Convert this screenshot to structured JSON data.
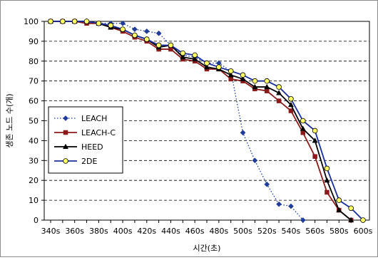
{
  "chart_data": {
    "type": "line",
    "title": "",
    "xlabel": "시간(초)",
    "ylabel": "생존 노드 수(개)",
    "categories": [
      "340s",
      "350s",
      "360s",
      "370s",
      "380s",
      "390s",
      "400s",
      "410s",
      "420s",
      "430s",
      "440s",
      "450s",
      "460s",
      "470s",
      "480s",
      "490s",
      "500s",
      "510s",
      "520s",
      "530s",
      "540s",
      "550s",
      "560s",
      "570s",
      "580s",
      "590s",
      "600s"
    ],
    "x_tick_labels": [
      "340s",
      "360s",
      "380s",
      "400s",
      "420s",
      "440s",
      "460s",
      "480s",
      "500s",
      "520s",
      "540s",
      "560s",
      "580s",
      "600s"
    ],
    "ylim": [
      0,
      100
    ],
    "y_ticks": [
      0,
      10,
      20,
      30,
      40,
      50,
      60,
      70,
      80,
      90,
      100
    ],
    "grid": "horizontal dashed",
    "legend_position": "lower-left inside",
    "series": [
      {
        "name": "LEACH",
        "color": "#1F3C9A",
        "line_style": "dotted",
        "marker": "diamond",
        "values": [
          100,
          100,
          100,
          100,
          99,
          99,
          99,
          96,
          95,
          94,
          88,
          83,
          82,
          79,
          79,
          75,
          44,
          30,
          18,
          8,
          7,
          0,
          null,
          null,
          null,
          null,
          null
        ]
      },
      {
        "name": "LEACH-C",
        "color": "#8B1A1A",
        "line_style": "solid",
        "marker": "square",
        "values": [
          100,
          100,
          100,
          99,
          99,
          97,
          95,
          92,
          90,
          86,
          86,
          81,
          80,
          76,
          76,
          71,
          70,
          66,
          65,
          60,
          55,
          44,
          32,
          14,
          5,
          0,
          null
        ]
      },
      {
        "name": "HEED",
        "color": "#000000",
        "line_style": "solid",
        "marker": "triangle",
        "values": [
          100,
          100,
          100,
          100,
          99,
          97,
          96,
          93,
          91,
          87,
          88,
          82,
          81,
          77,
          76,
          73,
          71,
          67,
          67,
          64,
          58,
          46,
          40,
          20,
          5,
          0,
          null
        ]
      },
      {
        "name": "2DE",
        "color": "#1A2E9E",
        "line_style": "solid",
        "marker": "circle",
        "values": [
          100,
          100,
          100,
          100,
          99,
          98,
          96,
          93,
          91,
          88,
          88,
          84,
          83,
          79,
          77,
          75,
          73,
          70,
          70,
          67,
          61,
          50,
          45,
          26,
          10,
          6,
          0
        ]
      }
    ]
  }
}
